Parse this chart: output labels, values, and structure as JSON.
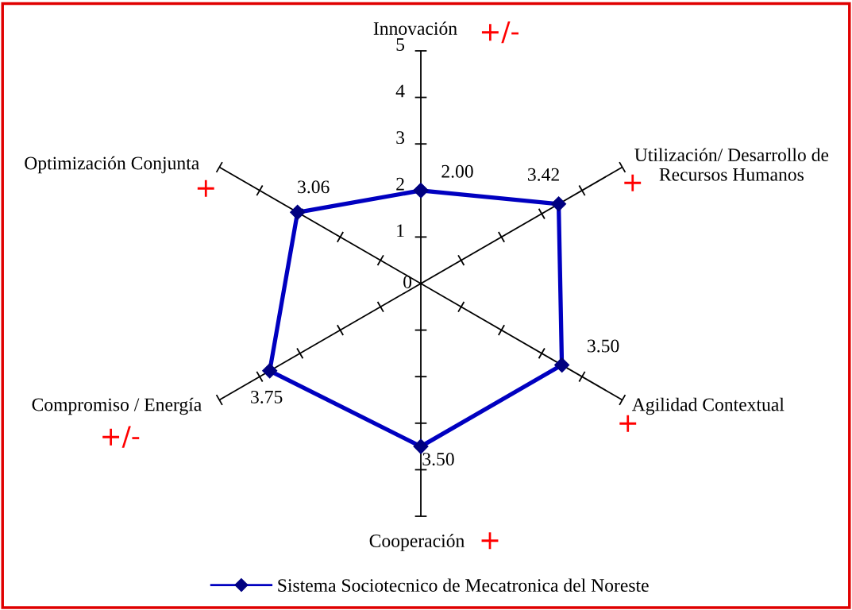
{
  "chart_data": {
    "type": "radar",
    "categories": [
      "Innovación",
      "Utilización/ Desarrollo de\nRecursos Humanos",
      "Agilidad Contextual",
      "Cooperación",
      "Compromiso / Energía",
      "Optimización Conjunta"
    ],
    "series": [
      {
        "name": "Sistema Sociotecnico de Mecatronica del Noreste",
        "color": "#0000c0",
        "values": [
          2.0,
          3.42,
          3.5,
          3.5,
          3.75,
          3.06
        ],
        "value_labels": [
          "2.00",
          "3.42",
          "3.50",
          "3.50",
          "3.75",
          "3.06"
        ]
      }
    ],
    "ylim": [
      0,
      5
    ],
    "yticks": [
      0,
      1,
      2,
      3,
      4,
      5
    ],
    "marker": "diamond",
    "line_style": "solid",
    "legend": "bottom",
    "annotations": [
      {
        "text": "+/-",
        "x": "Innovación"
      },
      {
        "text": "+",
        "x": "Utilización/ Desarrollo de\nRecursos Humanos"
      },
      {
        "text": "+",
        "x": "Agilidad Contextual"
      },
      {
        "text": "+",
        "x": "Cooperación"
      },
      {
        "text": "+/-",
        "x": "Compromiso / Energía"
      },
      {
        "text": "+",
        "x": "Optimización Conjunta"
      }
    ]
  }
}
